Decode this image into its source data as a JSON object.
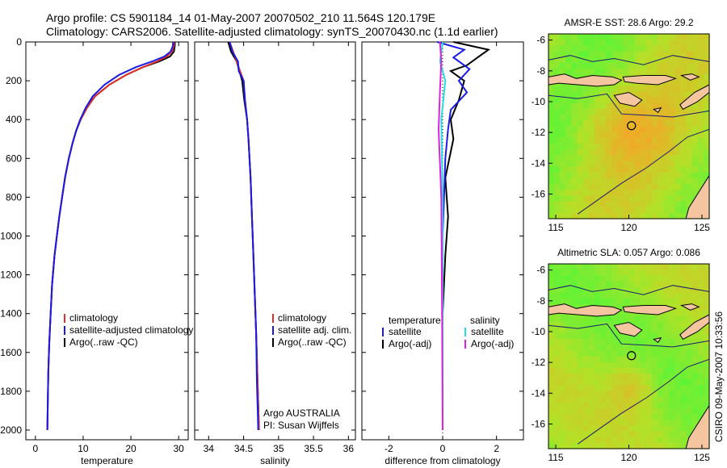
{
  "header": {
    "line1": "Argo profile: CS 5901184_14 01-May-2007 20070502_210 11.564S 120.179E",
    "line2": "Climatology: CARS2006. Satellite-adjusted climatology: synTS_20070430.nc (1.1d earlier)"
  },
  "side_stamp": "CSIRO 09-May-2007 10:33:56",
  "colors": {
    "climatology": "#e0302a",
    "satellite": "#1a1ae6",
    "argo": "#000000",
    "cyan": "#20e0e0",
    "magenta": "#e020e0",
    "land": "#f5c5a0",
    "coast": "#000000"
  },
  "chart_data": [
    {
      "type": "line",
      "xlabel": "temperature",
      "xlim": [
        -2,
        32
      ],
      "ylim": [
        2050,
        0
      ],
      "xticks": [
        0,
        10,
        20,
        30
      ],
      "yticks": [
        0,
        200,
        400,
        600,
        800,
        1000,
        1200,
        1400,
        1600,
        1800,
        2000
      ],
      "legend": [
        "climatology",
        "satellite-adjusted climatology",
        "Argo(..raw -QC)"
      ],
      "series": [
        {
          "name": "climatology",
          "color": "#e0302a",
          "x": [
            29.0,
            29.0,
            28.6,
            27.5,
            25.5,
            22.5,
            19.0,
            15.5,
            12.5,
            10.8,
            9.5,
            8.5,
            7.8,
            7.0,
            6.2,
            5.6,
            5.0,
            4.5,
            4.0,
            3.5,
            3.2,
            2.9,
            2.7,
            2.6,
            2.5
          ],
          "y": [
            0,
            20,
            50,
            75,
            100,
            130,
            170,
            220,
            280,
            340,
            400,
            460,
            520,
            600,
            700,
            800,
            900,
            1000,
            1100,
            1250,
            1400,
            1550,
            1700,
            1850,
            2000
          ]
        },
        {
          "name": "satellite-adjusted climatology",
          "color": "#1a1ae6",
          "x": [
            28.8,
            28.8,
            28.3,
            27.0,
            24.5,
            21.0,
            17.5,
            14.5,
            12.0,
            10.5,
            9.4,
            8.5,
            7.8,
            7.0,
            6.2,
            5.6,
            5.0,
            4.5,
            4.0,
            3.5,
            3.2,
            2.9,
            2.7,
            2.6,
            2.5
          ],
          "y": [
            0,
            20,
            50,
            75,
            100,
            130,
            170,
            220,
            280,
            340,
            400,
            460,
            520,
            600,
            700,
            800,
            900,
            1000,
            1100,
            1250,
            1400,
            1550,
            1700,
            1850,
            2000
          ]
        },
        {
          "name": "Argo(..raw -QC)",
          "color": "#000000",
          "x": [
            29.2,
            29.2,
            29.0,
            28.2,
            26.0,
            22.5,
            19.0,
            15.5,
            12.5,
            10.6,
            9.4,
            8.5,
            7.8,
            7.0,
            6.2,
            5.6,
            5.0,
            4.5,
            4.0,
            3.5,
            3.2,
            2.9,
            2.7,
            2.6,
            2.5
          ],
          "y": [
            0,
            20,
            50,
            75,
            100,
            130,
            170,
            220,
            280,
            340,
            400,
            460,
            520,
            600,
            700,
            800,
            900,
            1000,
            1100,
            1250,
            1400,
            1550,
            1700,
            1850,
            2000
          ]
        }
      ]
    },
    {
      "type": "line",
      "xlabel": "salinity",
      "xlim": [
        33.8,
        36.1
      ],
      "ylim": [
        2050,
        0
      ],
      "xticks": [
        34,
        34.5,
        35,
        35.5,
        36
      ],
      "legend": [
        "climatology",
        "satellite adj. clim.",
        "Argo(..raw -QC)"
      ],
      "annotations": [
        "Argo AUSTRALIA",
        "PI: Susan Wijffels"
      ],
      "series": [
        {
          "name": "climatology",
          "color": "#e0302a",
          "x": [
            34.3,
            34.35,
            34.4,
            34.45,
            34.5,
            34.52,
            34.55,
            34.57,
            34.6,
            34.62,
            34.64,
            34.66,
            34.68,
            34.7,
            34.72
          ],
          "y": [
            0,
            50,
            100,
            150,
            200,
            300,
            400,
            500,
            700,
            900,
            1100,
            1300,
            1500,
            1750,
            2000
          ]
        },
        {
          "name": "satellite adj. clim.",
          "color": "#1a1ae6",
          "x": [
            34.3,
            34.34,
            34.42,
            34.43,
            34.5,
            34.52,
            34.55,
            34.57,
            34.6,
            34.62,
            34.64,
            34.66,
            34.68,
            34.69,
            34.71
          ],
          "y": [
            0,
            50,
            100,
            150,
            200,
            300,
            400,
            500,
            700,
            900,
            1100,
            1300,
            1500,
            1750,
            2000
          ]
        },
        {
          "name": "Argo(..raw -QC)",
          "color": "#000000",
          "x": [
            34.28,
            34.32,
            34.4,
            34.44,
            34.48,
            34.51,
            34.55,
            34.57,
            34.6,
            34.62,
            34.64,
            34.66,
            34.68,
            34.7,
            34.72
          ],
          "y": [
            0,
            50,
            100,
            150,
            200,
            300,
            400,
            500,
            700,
            900,
            1100,
            1300,
            1500,
            1750,
            2000
          ]
        }
      ]
    },
    {
      "type": "line",
      "xlabel": "difference from climatology",
      "xlim": [
        -3,
        3
      ],
      "ylim": [
        2050,
        0
      ],
      "xticks": [
        -2,
        0,
        2
      ],
      "legend": {
        "temperature": [
          "satellite",
          "Argo(-adj)"
        ],
        "salinity": [
          "satellite",
          "Argo(-adj)"
        ]
      },
      "series": [
        {
          "name": "temperature satellite",
          "color": "#1a1ae6",
          "x": [
            -0.2,
            0.8,
            0.4,
            1.0,
            0.6,
            0.9,
            0.3,
            0.2,
            0.1,
            0.05,
            0.0,
            0.0,
            0.0,
            0.0
          ],
          "y": [
            0,
            40,
            80,
            140,
            200,
            260,
            350,
            450,
            600,
            800,
            1000,
            1300,
            1600,
            2000
          ]
        },
        {
          "name": "temperature Argo(-adj)",
          "color": "#000000",
          "x": [
            0.4,
            1.7,
            1.3,
            0.9,
            0.3,
            0.8,
            0.6,
            0.3,
            0.4,
            0.1,
            0.2,
            0.1,
            0.0,
            0.0,
            0.0
          ],
          "y": [
            0,
            40,
            80,
            120,
            150,
            200,
            300,
            400,
            500,
            700,
            900,
            1100,
            1400,
            1700,
            2000
          ]
        },
        {
          "name": "salinity satellite",
          "color": "#20e0e0",
          "x": [
            0.0,
            -0.1,
            0.1,
            -0.05,
            0.0,
            0.0,
            0.0
          ],
          "y": [
            0,
            100,
            200,
            400,
            800,
            1400,
            2000
          ]
        },
        {
          "name": "salinity Argo(-adj)",
          "color": "#e020e0",
          "x": [
            -0.1,
            -0.05,
            -0.1,
            -0.15,
            -0.05,
            -0.02,
            0.0
          ],
          "y": [
            0,
            100,
            250,
            450,
            800,
            1400,
            2000
          ]
        }
      ]
    },
    {
      "type": "heatmap",
      "title": "AMSR-E SST: 28.6 Argo: 29.2",
      "xlim": [
        114.5,
        125.5
      ],
      "ylim": [
        -17.6,
        -5.6
      ],
      "xticks": [
        115,
        120,
        125
      ],
      "yticks": [
        -6,
        -8,
        -10,
        -12,
        -14,
        -16
      ],
      "argo_position": [
        120.18,
        -11.56
      ]
    },
    {
      "type": "heatmap",
      "title": "Altimetric SLA: 0.057 Argo: 0.086",
      "xlim": [
        114.5,
        125.5
      ],
      "ylim": [
        -17.6,
        -5.6
      ],
      "xticks": [
        115,
        120,
        125
      ],
      "yticks": [
        -6,
        -8,
        -10,
        -12,
        -14,
        -16
      ],
      "argo_position": [
        120.18,
        -11.56
      ]
    }
  ]
}
